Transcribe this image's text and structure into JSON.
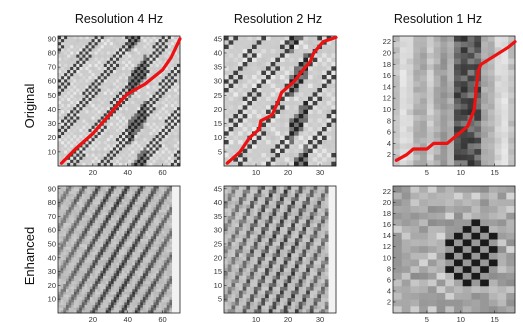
{
  "chart_data": {
    "type": "heatmap",
    "columns": [
      "Resolution 4 Hz",
      "Resolution 2 Hz",
      "Resolution 1 Hz"
    ],
    "rows": [
      "Original",
      "Enhanced"
    ],
    "panels": [
      {
        "row": "Original",
        "column": "Resolution 4 Hz",
        "xticks": [
          "20",
          "40",
          "60"
        ],
        "yticks": [
          "10",
          "20",
          "30",
          "40",
          "50",
          "60",
          "70",
          "80",
          "90"
        ],
        "xlim": [
          0,
          70
        ],
        "ylim": [
          0,
          92
        ],
        "path": [
          [
            2,
            2
          ],
          [
            10,
            12
          ],
          [
            20,
            23
          ],
          [
            30,
            37
          ],
          [
            36,
            46
          ],
          [
            40,
            51
          ],
          [
            50,
            58
          ],
          [
            60,
            68
          ],
          [
            65,
            77
          ],
          [
            70,
            90
          ]
        ]
      },
      {
        "row": "Original",
        "column": "Resolution 2 Hz",
        "xticks": [
          "10",
          "20",
          "30"
        ],
        "yticks": [
          "5",
          "10",
          "15",
          "20",
          "25",
          "30",
          "35",
          "40",
          "45"
        ],
        "xlim": [
          0,
          35
        ],
        "ylim": [
          0,
          46
        ],
        "path": [
          [
            1,
            1
          ],
          [
            5,
            5
          ],
          [
            8,
            10
          ],
          [
            11,
            13
          ],
          [
            11.5,
            16
          ],
          [
            15,
            18
          ],
          [
            17,
            23
          ],
          [
            18,
            26
          ],
          [
            22,
            30
          ],
          [
            24,
            33
          ],
          [
            27,
            37
          ],
          [
            28,
            40
          ],
          [
            31,
            44
          ],
          [
            35,
            45.5
          ]
        ]
      },
      {
        "row": "Original",
        "column": "Resolution 1 Hz",
        "xticks": [
          "5",
          "10",
          "15"
        ],
        "yticks": [
          "2",
          "4",
          "6",
          "8",
          "10",
          "12",
          "14",
          "16",
          "18",
          "20",
          "22"
        ],
        "xlim": [
          0,
          18
        ],
        "ylim": [
          0,
          23
        ],
        "path": [
          [
            0.5,
            1
          ],
          [
            2,
            2
          ],
          [
            3,
            3
          ],
          [
            5,
            3
          ],
          [
            6,
            4
          ],
          [
            8,
            4
          ],
          [
            9,
            5
          ],
          [
            10,
            6
          ],
          [
            11,
            7
          ],
          [
            12,
            10
          ],
          [
            12.3,
            14
          ],
          [
            12.6,
            17
          ],
          [
            13,
            18
          ],
          [
            15,
            19.5
          ],
          [
            17,
            21
          ],
          [
            18,
            22
          ]
        ]
      },
      {
        "row": "Enhanced",
        "column": "Resolution 4 Hz",
        "xticks": [
          "20",
          "40",
          "60"
        ],
        "yticks": [
          "10",
          "20",
          "30",
          "40",
          "50",
          "60",
          "70",
          "80",
          "90"
        ],
        "xlim": [
          0,
          70
        ],
        "ylim": [
          0,
          92
        ]
      },
      {
        "row": "Enhanced",
        "column": "Resolution 2 Hz",
        "xticks": [
          "10",
          "20",
          "30"
        ],
        "yticks": [
          "5",
          "10",
          "15",
          "20",
          "25",
          "30",
          "35",
          "40",
          "45"
        ],
        "xlim": [
          0,
          35
        ],
        "ylim": [
          0,
          46
        ]
      },
      {
        "row": "Enhanced",
        "column": "Resolution 1 Hz",
        "xticks": [
          "5",
          "10",
          "15"
        ],
        "yticks": [
          "2",
          "4",
          "6",
          "8",
          "10",
          "12",
          "14",
          "16",
          "18",
          "20",
          "22"
        ],
        "xlim": [
          0,
          18
        ],
        "ylim": [
          0,
          23
        ]
      }
    ],
    "colors": {
      "path": "#ee1111",
      "low": "#000000",
      "high": "#ffffff"
    },
    "grid": false,
    "legend": "none"
  }
}
